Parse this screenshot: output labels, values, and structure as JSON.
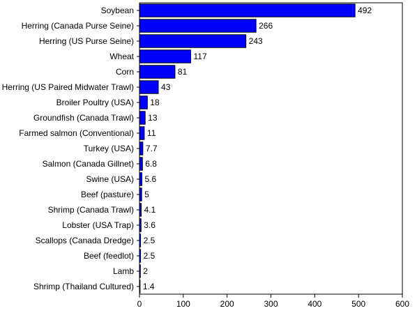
{
  "colors": {
    "bar": "#0000ff",
    "bar_stroke": "#000000",
    "axis": "#000000"
  },
  "chart_data": {
    "type": "bar",
    "orientation": "horizontal",
    "categories": [
      "Soybean",
      "Herring (Canada Purse Seine)",
      "Herring (US Purse Seine)",
      "Wheat",
      "Corn",
      "Herring (US Paired Midwater Trawl)",
      "Broiler Poultry (USA)",
      "Groundfish (Canada Trawl)",
      "Farmed salmon (Conventional)",
      "Turkey (USA)",
      "Salmon (Canada Gillnet)",
      "Swine (USA)",
      "Beef (pasture)",
      "Shrimp (Canada Trawl)",
      "Lobster (USA Trap)",
      "Scallops (Canada Dredge)",
      "Beef (feedlot)",
      "Lamb",
      "Shrimp (Thailand Cultured)"
    ],
    "values": [
      492,
      266,
      243,
      117,
      81,
      43,
      18,
      13,
      11,
      7.7,
      6.8,
      5.6,
      5,
      4.1,
      3.6,
      2.5,
      2.5,
      2,
      1.4
    ],
    "value_labels": [
      "492",
      "266",
      "243",
      "117",
      "81",
      "43",
      "18",
      "13",
      "11",
      "7.7",
      "6.8",
      "5.6",
      "5",
      "4.1",
      "3.6",
      "2.5",
      "2.5",
      "2",
      "1.4"
    ],
    "xlim": [
      0,
      600
    ],
    "xticks": [
      0,
      100,
      200,
      300,
      400,
      500,
      600
    ],
    "xtick_labels": [
      "0",
      "100",
      "200",
      "300",
      "400",
      "500",
      "600"
    ],
    "title": "",
    "xlabel": "",
    "ylabel": "",
    "grid": false,
    "legend": "none"
  }
}
